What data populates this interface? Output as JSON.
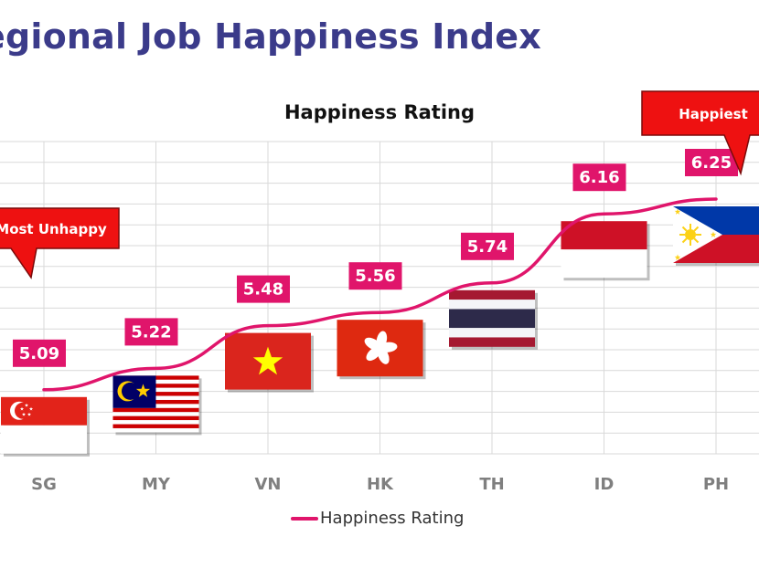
{
  "page_title": "egional Job Happiness Index",
  "callouts": {
    "low": {
      "label": "Most Unhappy",
      "country": "SG"
    },
    "high": {
      "label": "Happiest",
      "country": "PH"
    }
  },
  "colors": {
    "series": "#e0156b",
    "label_box": "#e0156b",
    "callout": "#ee1111",
    "axis_text": "#7f7f7f",
    "grid": "#d9d9d9",
    "title": "#3b3b8a"
  },
  "flags": [
    "singapore-flag",
    "malaysia-flag",
    "vietnam-flag",
    "hong-kong-flag",
    "thailand-flag",
    "indonesia-flag",
    "philippines-flag"
  ],
  "chart_data": {
    "type": "line",
    "title": "Happiness Rating",
    "categories": [
      "SG",
      "MY",
      "VN",
      "HK",
      "TH",
      "ID",
      "PH"
    ],
    "series": [
      {
        "name": "Happiness Rating",
        "values": [
          5.09,
          5.22,
          5.48,
          5.56,
          5.74,
          6.16,
          6.25
        ]
      }
    ],
    "data_labels": [
      "5.09",
      "5.22",
      "5.48",
      "5.56",
      "5.74",
      "6.16",
      "6.25"
    ],
    "ylim": [
      4.7,
      6.6
    ],
    "grid": true,
    "legend": "bottom"
  }
}
